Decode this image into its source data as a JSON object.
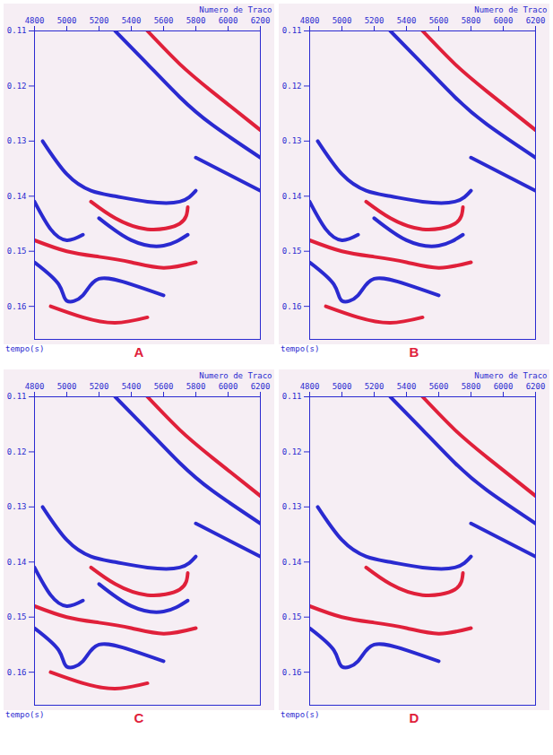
{
  "chart_data": [
    {
      "type": "line",
      "title": "A",
      "xlabel": "Numero de Traco",
      "ylabel": "tempo(s)",
      "xlim": [
        4800,
        6200
      ],
      "ylim": [
        0.11,
        0.166
      ],
      "xticks": [
        4800,
        5000,
        5200,
        5400,
        5600,
        5800,
        6000,
        6200
      ],
      "yticks": [
        0.11,
        0.12,
        0.13,
        0.14,
        0.15,
        0.16
      ],
      "series": [
        {
          "color": "#2a2ad0",
          "x": [
            5300,
            5500,
            5700,
            5900,
            6200
          ],
          "values": [
            0.11,
            0.116,
            0.122,
            0.127,
            0.133
          ]
        },
        {
          "color": "#e0203a",
          "x": [
            5500,
            5700,
            5900,
            6200
          ],
          "values": [
            0.11,
            0.116,
            0.121,
            0.128
          ]
        },
        {
          "color": "#2a2ad0",
          "x": [
            4850,
            5000,
            5150,
            5300,
            5500,
            5700,
            5800
          ],
          "values": [
            0.13,
            0.136,
            0.139,
            0.14,
            0.141,
            0.141,
            0.139
          ]
        },
        {
          "color": "#e0203a",
          "x": [
            5150,
            5300,
            5500,
            5700,
            5750
          ],
          "values": [
            0.141,
            0.144,
            0.146,
            0.145,
            0.142
          ]
        },
        {
          "color": "#2a2ad0",
          "x": [
            5200,
            5400,
            5600,
            5750
          ],
          "values": [
            0.144,
            0.148,
            0.149,
            0.147
          ]
        },
        {
          "color": "#e0203a",
          "x": [
            4800,
            5000,
            5200,
            5400,
            5600,
            5800
          ],
          "values": [
            0.148,
            0.15,
            0.151,
            0.152,
            0.153,
            0.152
          ]
        },
        {
          "color": "#2a2ad0",
          "x": [
            4800,
            4950,
            5000,
            5100,
            5200,
            5400,
            5600
          ],
          "values": [
            0.152,
            0.156,
            0.159,
            0.158,
            0.155,
            0.156,
            0.158
          ]
        },
        {
          "color": "#2a2ad0",
          "x": [
            4800,
            4900,
            5000,
            5100
          ],
          "values": [
            0.141,
            0.146,
            0.148,
            0.147
          ]
        },
        {
          "color": "#2a2ad0",
          "x": [
            5800,
            6000,
            6200
          ],
          "values": [
            0.133,
            0.136,
            0.139
          ]
        },
        {
          "color": "#e0203a",
          "x": [
            4900,
            5100,
            5300,
            5500
          ],
          "values": [
            0.16,
            0.162,
            0.163,
            0.162
          ]
        }
      ]
    },
    {
      "type": "line",
      "title": "B",
      "xlabel": "Numero de Traco",
      "ylabel": "tempo(s)",
      "xlim": [
        4800,
        6200
      ],
      "ylim": [
        0.11,
        0.166
      ],
      "xticks": [
        4800,
        5000,
        5200,
        5400,
        5600,
        5800,
        6000,
        6200
      ],
      "yticks": [
        0.11,
        0.12,
        0.13,
        0.14,
        0.15,
        0.16
      ],
      "series": [
        {
          "color": "#2a2ad0",
          "x": [
            5300,
            5500,
            5700,
            5900,
            6200
          ],
          "values": [
            0.11,
            0.116,
            0.122,
            0.127,
            0.133
          ]
        },
        {
          "color": "#e0203a",
          "x": [
            5500,
            5700,
            5900,
            6200
          ],
          "values": [
            0.11,
            0.116,
            0.121,
            0.128
          ]
        },
        {
          "color": "#2a2ad0",
          "x": [
            4850,
            5000,
            5150,
            5300,
            5500,
            5700,
            5800
          ],
          "values": [
            0.13,
            0.136,
            0.139,
            0.14,
            0.141,
            0.141,
            0.139
          ]
        },
        {
          "color": "#e0203a",
          "x": [
            5150,
            5300,
            5500,
            5700,
            5750
          ],
          "values": [
            0.141,
            0.144,
            0.146,
            0.145,
            0.142
          ]
        },
        {
          "color": "#2a2ad0",
          "x": [
            5200,
            5400,
            5600,
            5750
          ],
          "values": [
            0.144,
            0.148,
            0.149,
            0.147
          ]
        },
        {
          "color": "#e0203a",
          "x": [
            4800,
            5000,
            5200,
            5400,
            5600,
            5800
          ],
          "values": [
            0.148,
            0.15,
            0.151,
            0.152,
            0.153,
            0.152
          ]
        },
        {
          "color": "#2a2ad0",
          "x": [
            4800,
            4950,
            5000,
            5100,
            5200,
            5400,
            5600
          ],
          "values": [
            0.152,
            0.156,
            0.159,
            0.158,
            0.155,
            0.156,
            0.158
          ]
        },
        {
          "color": "#2a2ad0",
          "x": [
            4800,
            4900,
            5000,
            5100
          ],
          "values": [
            0.141,
            0.146,
            0.148,
            0.147
          ]
        },
        {
          "color": "#2a2ad0",
          "x": [
            5800,
            6000,
            6200
          ],
          "values": [
            0.133,
            0.136,
            0.139
          ]
        },
        {
          "color": "#e0203a",
          "x": [
            4900,
            5100,
            5300,
            5500
          ],
          "values": [
            0.16,
            0.162,
            0.163,
            0.162
          ]
        }
      ]
    },
    {
      "type": "line",
      "title": "C",
      "xlabel": "Numero de Traco",
      "ylabel": "tempo(s)",
      "xlim": [
        4800,
        6200
      ],
      "ylim": [
        0.11,
        0.166
      ],
      "xticks": [
        4800,
        5000,
        5200,
        5400,
        5600,
        5800,
        6000,
        6200
      ],
      "yticks": [
        0.11,
        0.12,
        0.13,
        0.14,
        0.15,
        0.16
      ],
      "series": [
        {
          "color": "#2a2ad0",
          "x": [
            5300,
            5500,
            5700,
            5900,
            6200
          ],
          "values": [
            0.11,
            0.116,
            0.122,
            0.127,
            0.133
          ]
        },
        {
          "color": "#e0203a",
          "x": [
            5500,
            5700,
            5900,
            6200
          ],
          "values": [
            0.11,
            0.116,
            0.121,
            0.128
          ]
        },
        {
          "color": "#2a2ad0",
          "x": [
            4850,
            5000,
            5150,
            5300,
            5500,
            5700,
            5800
          ],
          "values": [
            0.13,
            0.136,
            0.139,
            0.14,
            0.141,
            0.141,
            0.139
          ]
        },
        {
          "color": "#e0203a",
          "x": [
            5150,
            5300,
            5500,
            5700,
            5750
          ],
          "values": [
            0.141,
            0.144,
            0.146,
            0.145,
            0.142
          ]
        },
        {
          "color": "#2a2ad0",
          "x": [
            5200,
            5400,
            5600,
            5750
          ],
          "values": [
            0.144,
            0.148,
            0.149,
            0.147
          ]
        },
        {
          "color": "#e0203a",
          "x": [
            4800,
            5000,
            5200,
            5400,
            5600,
            5800
          ],
          "values": [
            0.148,
            0.15,
            0.151,
            0.152,
            0.153,
            0.152
          ]
        },
        {
          "color": "#2a2ad0",
          "x": [
            4800,
            4950,
            5000,
            5100,
            5200,
            5400,
            5600
          ],
          "values": [
            0.152,
            0.156,
            0.159,
            0.158,
            0.155,
            0.156,
            0.158
          ]
        },
        {
          "color": "#2a2ad0",
          "x": [
            4800,
            4900,
            5000,
            5100
          ],
          "values": [
            0.141,
            0.146,
            0.148,
            0.147
          ]
        },
        {
          "color": "#2a2ad0",
          "x": [
            5800,
            6000,
            6200
          ],
          "values": [
            0.133,
            0.136,
            0.139
          ]
        },
        {
          "color": "#e0203a",
          "x": [
            4900,
            5100,
            5300,
            5500
          ],
          "values": [
            0.16,
            0.162,
            0.163,
            0.162
          ]
        }
      ]
    },
    {
      "type": "line",
      "title": "D",
      "xlabel": "Numero de Traco",
      "ylabel": "tempo(s)",
      "xlim": [
        4800,
        6200
      ],
      "ylim": [
        0.11,
        0.166
      ],
      "xticks": [
        4800,
        5000,
        5200,
        5400,
        5600,
        5800,
        6000,
        6200
      ],
      "yticks": [
        0.11,
        0.12,
        0.13,
        0.14,
        0.15,
        0.16
      ],
      "series": [
        {
          "color": "#2a2ad0",
          "x": [
            5300,
            5500,
            5700,
            5900,
            6200
          ],
          "values": [
            0.11,
            0.116,
            0.122,
            0.127,
            0.133
          ]
        },
        {
          "color": "#e0203a",
          "x": [
            5500,
            5700,
            5900,
            6200
          ],
          "values": [
            0.11,
            0.116,
            0.121,
            0.128
          ]
        },
        {
          "color": "#2a2ad0",
          "x": [
            4850,
            5000,
            5150,
            5300,
            5500,
            5700,
            5800
          ],
          "values": [
            0.13,
            0.136,
            0.139,
            0.14,
            0.141,
            0.141,
            0.139
          ]
        },
        {
          "color": "#e0203a",
          "x": [
            5150,
            5300,
            5500,
            5700,
            5750
          ],
          "values": [
            0.141,
            0.144,
            0.146,
            0.145,
            0.142
          ]
        },
        {
          "color": "#e0203a",
          "x": [
            4800,
            5000,
            5200,
            5400,
            5600,
            5800
          ],
          "values": [
            0.148,
            0.15,
            0.151,
            0.152,
            0.153,
            0.152
          ]
        },
        {
          "color": "#2a2ad0",
          "x": [
            4800,
            4950,
            5000,
            5100,
            5200,
            5400,
            5600
          ],
          "values": [
            0.152,
            0.156,
            0.159,
            0.158,
            0.155,
            0.156,
            0.158
          ]
        },
        {
          "color": "#2a2ad0",
          "x": [
            5800,
            6000,
            6200
          ],
          "values": [
            0.133,
            0.136,
            0.139
          ]
        }
      ]
    }
  ]
}
